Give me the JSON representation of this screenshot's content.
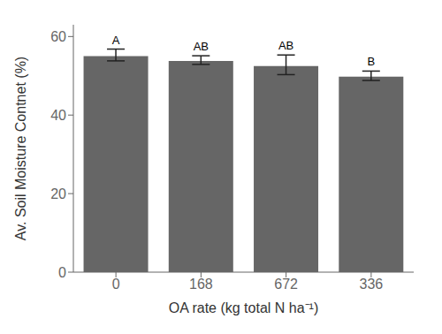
{
  "chart_data": {
    "type": "bar",
    "categories": [
      "0",
      "168",
      "672",
      "336"
    ],
    "values": [
      55.0,
      53.8,
      52.5,
      49.8
    ],
    "errors_upper": [
      1.8,
      1.3,
      2.8,
      1.4
    ],
    "errors_lower": [
      1.2,
      0.9,
      2.2,
      1.0
    ],
    "letters": [
      "A",
      "AB",
      "AB",
      "B"
    ],
    "color": "#666666",
    "xlabel": "OA rate (kg total N  ha⁻¹)",
    "ylabel": "Av. Soil Moisture Contnet (%)",
    "ylim": [
      0,
      63
    ],
    "yticks": [
      0,
      20,
      40,
      60
    ],
    "grid": false
  }
}
